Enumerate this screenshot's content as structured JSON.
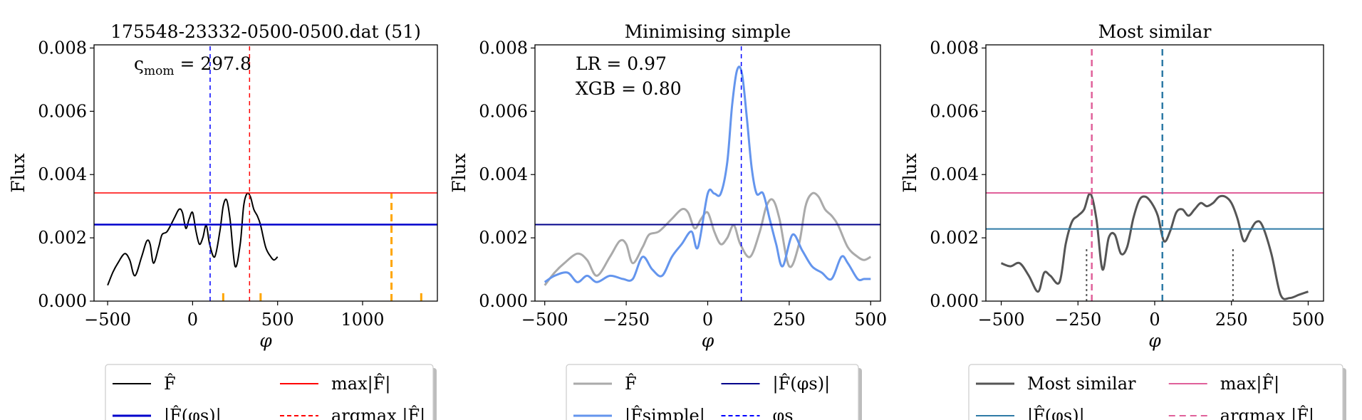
{
  "chart_data": [
    {
      "type": "line",
      "title": "175548-23332-0500-0500.dat (51)",
      "xlabel": "φ",
      "ylabel": "Flux",
      "xlim": [
        -580,
        1440
      ],
      "ylim": [
        0,
        0.0081
      ],
      "xticks": [
        {
          "v": -500,
          "t": "−500"
        },
        {
          "v": 0,
          "t": "0"
        },
        {
          "v": 500,
          "t": "500"
        },
        {
          "v": 1000,
          "t": "1000"
        }
      ],
      "yticks": [
        {
          "v": 0,
          "t": "0.000"
        },
        {
          "v": 0.002,
          "t": "0.002"
        },
        {
          "v": 0.004,
          "t": "0.004"
        },
        {
          "v": 0.006,
          "t": "0.006"
        },
        {
          "v": 0.008,
          "t": "0.008"
        }
      ],
      "annotations": [
        {
          "text": "ς",
          "sub": "mom",
          "rest": " = 297.8"
        }
      ],
      "series": [
        {
          "name": "F̂",
          "color": "#000000",
          "width": 2,
          "dash": "",
          "x": [
            -500,
            -470,
            -440,
            -400,
            -370,
            -340,
            -300,
            -270,
            -250,
            -230,
            -200,
            -180,
            -150,
            -110,
            -80,
            -60,
            -40,
            -20,
            0,
            20,
            40,
            60,
            80,
            100,
            130,
            160,
            180,
            200,
            220,
            250,
            280,
            300,
            320,
            340,
            360,
            380,
            400,
            430,
            460,
            480,
            500
          ],
          "y": [
            0.0005,
            0.0009,
            0.0012,
            0.0015,
            0.0013,
            0.0008,
            0.0014,
            0.0019,
            0.0018,
            0.0012,
            0.0017,
            0.0021,
            0.0022,
            0.0026,
            0.0029,
            0.0028,
            0.0023,
            0.0026,
            0.0028,
            0.0022,
            0.0018,
            0.002,
            0.0024,
            0.0018,
            0.0014,
            0.0022,
            0.003,
            0.0032,
            0.0026,
            0.0011,
            0.0018,
            0.003,
            0.0034,
            0.0033,
            0.0029,
            0.0027,
            0.0024,
            0.0017,
            0.0014,
            0.0013,
            0.0014
          ]
        },
        {
          "name": "|F̂(φs)|",
          "color": "#0000cc",
          "width": 2.5,
          "kind": "hline",
          "y": 0.00242
        },
        {
          "name": "max|F̂|",
          "color": "#ff0000",
          "width": 1.5,
          "kind": "hline",
          "y": 0.00342
        },
        {
          "name": "argmax |F̂|",
          "color": "#ff0000",
          "width": 1.5,
          "dash": "6,5",
          "kind": "vline",
          "x": 335
        },
        {
          "name": "",
          "color": "#0000ff",
          "width": 1.5,
          "dash": "6,5",
          "kind": "vline",
          "x": 103
        },
        {
          "name": "",
          "color": "#ffa500",
          "width": 3,
          "dash": "10,6",
          "kind": "vline",
          "x": 1170,
          "ymax": 0.0034
        },
        {
          "name": "",
          "color": "#ffa500",
          "width": 3,
          "kind": "ticks",
          "x": [
            180,
            400,
            1345
          ],
          "ymax": 0.00025
        }
      ],
      "legend": {
        "placement": "below",
        "col1": [
          {
            "name": "F̂",
            "color": "#000000",
            "width": 2,
            "dash": ""
          },
          {
            "name": "|F̂(φs)|",
            "color": "#0000cc",
            "width": 3,
            "dash": ""
          }
        ],
        "col2": [
          {
            "name": "max|F̂|",
            "color": "#ff0000",
            "width": 2,
            "dash": ""
          },
          {
            "name": "argmax |F̂|",
            "color": "#ff0000",
            "width": 2,
            "dash": "6,4"
          }
        ]
      }
    },
    {
      "type": "line",
      "title": "Minimising simple",
      "xlabel": "φ",
      "ylabel": "Flux",
      "xlim": [
        -530,
        530
      ],
      "ylim": [
        0,
        0.0081
      ],
      "xticks": [
        {
          "v": -500,
          "t": "−500"
        },
        {
          "v": -250,
          "t": "−250"
        },
        {
          "v": 0,
          "t": "0"
        },
        {
          "v": 250,
          "t": "250"
        },
        {
          "v": 500,
          "t": "500"
        }
      ],
      "yticks": [
        {
          "v": 0,
          "t": "0.000"
        },
        {
          "v": 0.002,
          "t": "0.002"
        },
        {
          "v": 0.004,
          "t": "0.004"
        },
        {
          "v": 0.006,
          "t": "0.006"
        },
        {
          "v": 0.008,
          "t": "0.008"
        }
      ],
      "annotations": [
        {
          "text": "LR = 0.97"
        },
        {
          "text": "XGB = 0.80"
        }
      ],
      "series": [
        {
          "name": "F̂",
          "color": "#aaaaaa",
          "width": 3,
          "dash": "",
          "x": [
            -500,
            -470,
            -440,
            -400,
            -370,
            -340,
            -300,
            -270,
            -250,
            -230,
            -200,
            -180,
            -150,
            -110,
            -80,
            -60,
            -40,
            -20,
            0,
            20,
            40,
            60,
            80,
            100,
            130,
            160,
            180,
            200,
            220,
            250,
            280,
            300,
            320,
            340,
            360,
            380,
            400,
            430,
            460,
            480,
            500
          ],
          "y": [
            0.0005,
            0.0009,
            0.0012,
            0.0015,
            0.0013,
            0.0008,
            0.0014,
            0.0019,
            0.0018,
            0.0012,
            0.0017,
            0.0021,
            0.0022,
            0.0026,
            0.0029,
            0.0028,
            0.0023,
            0.0026,
            0.0028,
            0.0022,
            0.0018,
            0.002,
            0.0024,
            0.0018,
            0.0014,
            0.0022,
            0.003,
            0.0032,
            0.0026,
            0.0011,
            0.0018,
            0.003,
            0.0034,
            0.0033,
            0.0029,
            0.0027,
            0.0024,
            0.0017,
            0.0014,
            0.0013,
            0.0014
          ]
        },
        {
          "name": "|F̂simple|",
          "color": "#6495ed",
          "width": 3,
          "dash": "",
          "x": [
            -500,
            -470,
            -430,
            -400,
            -370,
            -340,
            -300,
            -260,
            -230,
            -200,
            -170,
            -140,
            -110,
            -80,
            -50,
            -30,
            0,
            20,
            40,
            60,
            75,
            90,
            105,
            120,
            135,
            150,
            170,
            190,
            210,
            230,
            260,
            290,
            320,
            350,
            380,
            410,
            430,
            460,
            480,
            500
          ],
          "y": [
            0.0006,
            0.0008,
            0.0009,
            0.0006,
            0.0008,
            0.0006,
            0.0008,
            0.0007,
            0.0007,
            0.0014,
            0.001,
            0.0008,
            0.0014,
            0.0018,
            0.0022,
            0.0017,
            0.0034,
            0.0034,
            0.0034,
            0.0044,
            0.0062,
            0.0073,
            0.0072,
            0.0058,
            0.0042,
            0.0034,
            0.0034,
            0.0026,
            0.0018,
            0.0011,
            0.0021,
            0.0016,
            0.0011,
            0.0009,
            0.0007,
            0.0014,
            0.0012,
            0.0007,
            0.0007,
            0.0007
          ]
        },
        {
          "name": "|F̂(φs)|",
          "color": "#00008b",
          "width": 2,
          "kind": "hline",
          "y": 0.00242
        },
        {
          "name": "φs",
          "color": "#0000ff",
          "width": 1.5,
          "dash": "6,5",
          "kind": "vline",
          "x": 103
        }
      ],
      "legend": {
        "placement": "below",
        "col1": [
          {
            "name": "F̂",
            "color": "#aaaaaa",
            "width": 3,
            "dash": ""
          },
          {
            "name": "|F̂simple|",
            "color": "#6495ed",
            "width": 3,
            "dash": ""
          }
        ],
        "col2": [
          {
            "name": "|F̂(φs)|",
            "color": "#00008b",
            "width": 2,
            "dash": ""
          },
          {
            "name": "φs",
            "color": "#0000ff",
            "width": 2,
            "dash": "6,4"
          }
        ]
      }
    },
    {
      "type": "line",
      "title": "Most similar",
      "xlabel": "φ",
      "ylabel": "Flux",
      "xlim": [
        -550,
        550
      ],
      "ylim": [
        0,
        0.0081
      ],
      "xticks": [
        {
          "v": -500,
          "t": "−500"
        },
        {
          "v": -250,
          "t": "−250"
        },
        {
          "v": 0,
          "t": "0"
        },
        {
          "v": 250,
          "t": "250"
        },
        {
          "v": 500,
          "t": "500"
        }
      ],
      "yticks": [
        {
          "v": 0,
          "t": "0.000"
        },
        {
          "v": 0.002,
          "t": "0.002"
        },
        {
          "v": 0.004,
          "t": "0.004"
        },
        {
          "v": 0.006,
          "t": "0.006"
        },
        {
          "v": 0.008,
          "t": "0.008"
        }
      ],
      "annotations": [],
      "series": [
        {
          "name": "Most similar",
          "color": "#555555",
          "width": 3,
          "dash": "",
          "x": [
            -500,
            -470,
            -440,
            -410,
            -380,
            -360,
            -340,
            -310,
            -290,
            -270,
            -250,
            -230,
            -210,
            -190,
            -170,
            -150,
            -130,
            -110,
            -90,
            -70,
            -50,
            -30,
            -10,
            10,
            30,
            50,
            70,
            90,
            110,
            130,
            150,
            170,
            190,
            210,
            230,
            250,
            270,
            290,
            310,
            330,
            350,
            380,
            410,
            440,
            470,
            500
          ],
          "y": [
            0.0012,
            0.0011,
            0.0012,
            0.0008,
            0.0003,
            0.0009,
            0.0008,
            0.0006,
            0.0018,
            0.0025,
            0.0027,
            0.0029,
            0.0034,
            0.0026,
            0.001,
            0.002,
            0.0021,
            0.0015,
            0.0017,
            0.0026,
            0.0032,
            0.0033,
            0.0031,
            0.0027,
            0.0019,
            0.0022,
            0.0028,
            0.0029,
            0.0027,
            0.0029,
            0.0031,
            0.003,
            0.0031,
            0.0033,
            0.0033,
            0.0031,
            0.0026,
            0.0019,
            0.0022,
            0.0025,
            0.0024,
            0.0015,
            0.0002,
            0.0001,
            0.0002,
            0.0003
          ]
        },
        {
          "name": "|F̂(φs)|",
          "color": "#2e7aa6",
          "width": 2,
          "kind": "hline",
          "y": 0.00228
        },
        {
          "name": "max|F̂|",
          "color": "#e0609a",
          "width": 2,
          "kind": "hline",
          "y": 0.00342
        },
        {
          "name": "argmax |F̂|",
          "color": "#e0609a",
          "width": 2.5,
          "dash": "9,6",
          "kind": "vline",
          "x": -205
        },
        {
          "name": "",
          "color": "#2e7aa6",
          "width": 2.5,
          "dash": "9,6",
          "kind": "vline",
          "x": 25
        },
        {
          "name": "",
          "color": "#555555",
          "width": 2,
          "dash": "3,4",
          "kind": "vline",
          "x": -222,
          "ymax": 0.0017
        },
        {
          "name": "",
          "color": "#555555",
          "width": 2,
          "dash": "3,4",
          "kind": "vline",
          "x": 255,
          "ymax": 0.0017
        }
      ],
      "legend": {
        "placement": "below",
        "col1": [
          {
            "name": "Most similar",
            "color": "#555555",
            "width": 3,
            "dash": ""
          },
          {
            "name": "|F̂(φs)|",
            "color": "#2e7aa6",
            "width": 2,
            "dash": ""
          }
        ],
        "col2": [
          {
            "name": "max|F̂|",
            "color": "#e0609a",
            "width": 2,
            "dash": ""
          },
          {
            "name": "argmax |F̂|",
            "color": "#e0609a",
            "width": 2,
            "dash": "9,6"
          }
        ]
      }
    }
  ]
}
